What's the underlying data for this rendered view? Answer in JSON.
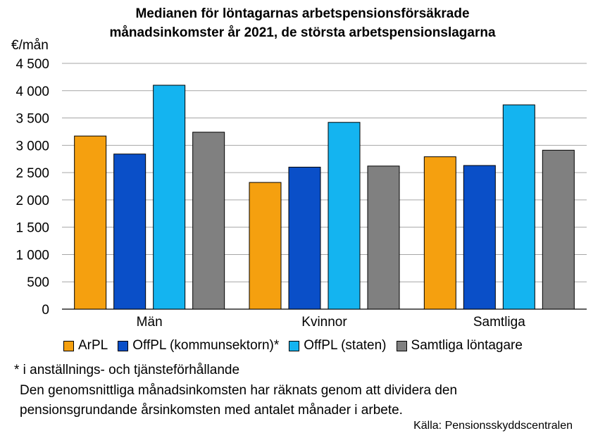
{
  "chart_data": {
    "type": "bar",
    "title_lines": [
      "Medianen för löntagarnas arbetspensionsförsäkrade",
      "månadsinkomster år 2021, de största arbetspensionslagarna"
    ],
    "ylabel": "€/mån",
    "ylim": [
      0,
      4500
    ],
    "yticks": [
      0,
      500,
      1000,
      1500,
      2000,
      2500,
      3000,
      3500,
      4000,
      4500
    ],
    "ytick_labels": [
      "0",
      "500",
      "1 000",
      "1 500",
      "2 000",
      "2 500",
      "3 000",
      "3 500",
      "4 000",
      "4 500"
    ],
    "grid": true,
    "legend_position": "bottom",
    "categories": [
      "Män",
      "Kvinnor",
      "Samtliga"
    ],
    "series": [
      {
        "name": "ArPL",
        "color": "#f5a00f",
        "values": [
          3170,
          2320,
          2790
        ]
      },
      {
        "name": "OffPL (kommunsektorn)*",
        "color": "#0a4fc8",
        "values": [
          2840,
          2600,
          2630
        ]
      },
      {
        "name": "OffPL (staten)",
        "color": "#14b4f0",
        "values": [
          4100,
          3420,
          3740
        ]
      },
      {
        "name": "Samtliga löntagare",
        "color": "#808080",
        "values": [
          3240,
          2620,
          2910
        ]
      }
    ]
  },
  "notes": {
    "footnote": "* i anställnings- och tjänsteförhållande",
    "method_line1": "Den genomsnittliga månadsinkomsten har räknats genom att dividera den",
    "method_line2": "pensionsgrundande årsinkomsten med antalet månader i arbete.",
    "source": "Källa: Pensionsskyddscentralen"
  }
}
